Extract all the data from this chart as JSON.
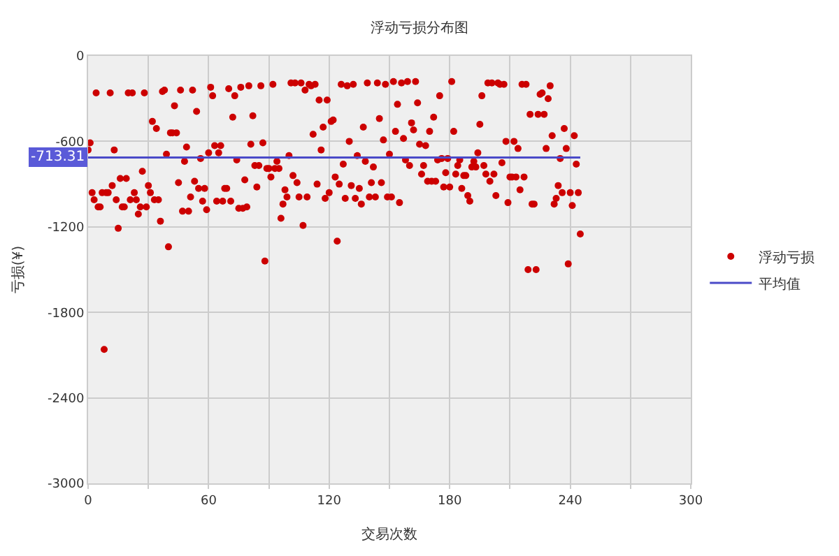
{
  "chart_data": {
    "type": "scatter",
    "title": "浮动亏损分布图",
    "xlabel": "交易次数",
    "ylabel": "亏损(¥)",
    "xlim": [
      0,
      300
    ],
    "xticks": [
      0,
      {
        "value": 30,
        "label": null
      },
      60,
      {
        "value": 90,
        "label": null
      },
      120,
      {
        "value": 150,
        "label": null
      },
      180,
      {
        "value": 210,
        "label": null
      },
      240,
      {
        "value": 270,
        "label": null
      },
      300
    ],
    "ylim": [
      -3000,
      0
    ],
    "yticks": [
      0,
      -600,
      -1200,
      -1800,
      -2400,
      -3000
    ],
    "grid": true,
    "legend": "right",
    "series": [
      {
        "name": "浮动亏损",
        "color": "#cc0000",
        "marker": "circle",
        "x": [
          0,
          1,
          2,
          3,
          4,
          5,
          6,
          7,
          8,
          9,
          10,
          11,
          12,
          13,
          14,
          15,
          16,
          17,
          18,
          19,
          20,
          21,
          22,
          23,
          24,
          25,
          26,
          27,
          28,
          29,
          30,
          31,
          32,
          33,
          34,
          35,
          36,
          37,
          38,
          39,
          40,
          41,
          42,
          43,
          44,
          45,
          46,
          47,
          48,
          49,
          50,
          51,
          52,
          53,
          54,
          55,
          56,
          57,
          58,
          59,
          60,
          61,
          62,
          63,
          64,
          65,
          66,
          67,
          68,
          69,
          70,
          71,
          72,
          73,
          74,
          75,
          76,
          77,
          78,
          79,
          80,
          81,
          82,
          83,
          84,
          85,
          86,
          87,
          88,
          89,
          90,
          91,
          92,
          93,
          94,
          95,
          96,
          97,
          98,
          99,
          100,
          101,
          102,
          103,
          104,
          105,
          106,
          107,
          108,
          109,
          110,
          111,
          112,
          113,
          114,
          115,
          116,
          117,
          118,
          119,
          120,
          121,
          122,
          123,
          124,
          125,
          126,
          127,
          128,
          129,
          130,
          131,
          132,
          133,
          134,
          135,
          136,
          137,
          138,
          139,
          140,
          141,
          142,
          143,
          144,
          145,
          146,
          147,
          148,
          149,
          150,
          151,
          152,
          153,
          154,
          155,
          156,
          157,
          158,
          159,
          160,
          161,
          162,
          163,
          164,
          165,
          166,
          167,
          168,
          169,
          170,
          171,
          172,
          173,
          174,
          175,
          176,
          177,
          178,
          179,
          180,
          181,
          182,
          183,
          184,
          185,
          186,
          187,
          188,
          189,
          190,
          191,
          192,
          193,
          194,
          195,
          196,
          197,
          198,
          199,
          200,
          201,
          202,
          203,
          204,
          205,
          206,
          207,
          208,
          209,
          210,
          211,
          212,
          213,
          214,
          215,
          216,
          217,
          218,
          219,
          220,
          221,
          222,
          223,
          224,
          225,
          226,
          227,
          228,
          229,
          230,
          231,
          232,
          233,
          234,
          235,
          236,
          237,
          238,
          239,
          240,
          241,
          242,
          243,
          244,
          245
        ],
        "values": [
          -660,
          -610,
          -960,
          -1010,
          -260,
          -1060,
          -1060,
          -960,
          -2060,
          -960,
          -960,
          -260,
          -910,
          -660,
          -1010,
          -1210,
          -860,
          -1060,
          -1060,
          -860,
          -260,
          -1010,
          -260,
          -960,
          -1010,
          -1110,
          -1060,
          -810,
          -260,
          -1060,
          -910,
          -960,
          -460,
          -1010,
          -510,
          -1010,
          -1160,
          -250,
          -240,
          -690,
          -1340,
          -540,
          -540,
          -350,
          -540,
          -890,
          -240,
          -1090,
          -740,
          -640,
          -1090,
          -990,
          -240,
          -880,
          -390,
          -930,
          -720,
          -1020,
          -930,
          -1080,
          -680,
          -220,
          -280,
          -630,
          -1020,
          -680,
          -630,
          -1020,
          -930,
          -930,
          -230,
          -1020,
          -430,
          -280,
          -730,
          -1070,
          -220,
          -1070,
          -870,
          -1060,
          -210,
          -620,
          -420,
          -770,
          -920,
          -770,
          -210,
          -610,
          -1440,
          -790,
          -790,
          -850,
          -200,
          -790,
          -740,
          -790,
          -1140,
          -1040,
          -940,
          -990,
          -700,
          -190,
          -840,
          -190,
          -890,
          -990,
          -190,
          -1190,
          -240,
          -990,
          -200,
          -210,
          -550,
          -200,
          -900,
          -310,
          -660,
          -500,
          -1000,
          -310,
          -960,
          -460,
          -450,
          -850,
          -1300,
          -900,
          -200,
          -760,
          -1000,
          -210,
          -600,
          -910,
          -200,
          -1000,
          -700,
          -930,
          -1040,
          -500,
          -740,
          -190,
          -990,
          -890,
          -780,
          -990,
          -190,
          -440,
          -890,
          -590,
          -200,
          -990,
          -690,
          -990,
          -180,
          -530,
          -340,
          -1030,
          -190,
          -580,
          -730,
          -180,
          -770,
          -470,
          -520,
          -180,
          -330,
          -620,
          -830,
          -770,
          -630,
          -880,
          -530,
          -880,
          -430,
          -880,
          -730,
          -280,
          -720,
          -920,
          -820,
          -720,
          -920,
          -180,
          -530,
          -830,
          -770,
          -730,
          -930,
          -840,
          -840,
          -980,
          -1020,
          -780,
          -740,
          -780,
          -680,
          -480,
          -280,
          -770,
          -830,
          -190,
          -880,
          -190,
          -830,
          -980,
          -190,
          -200,
          -750,
          -200,
          -600,
          -1030,
          -850,
          -850,
          -600,
          -850,
          -650,
          -940,
          -200,
          -850,
          -200,
          -1500,
          -410,
          -1040,
          -1040,
          -1500,
          -410,
          -270,
          -260,
          -410,
          -650,
          -300,
          -210,
          -560,
          -1040,
          -1000,
          -910,
          -720,
          -960,
          -510,
          -650,
          -1460,
          -960,
          -1050,
          -560,
          -760,
          -960,
          -1250
        ]
      },
      {
        "name": "平均值",
        "color": "#4a4ac8",
        "type": "line",
        "marker": "none",
        "x": [
          0,
          245
        ],
        "values": [
          -713.31,
          -713.31
        ]
      }
    ],
    "annotations": [
      {
        "text": "-713.31",
        "x": 0,
        "y": -713.31
      }
    ]
  }
}
